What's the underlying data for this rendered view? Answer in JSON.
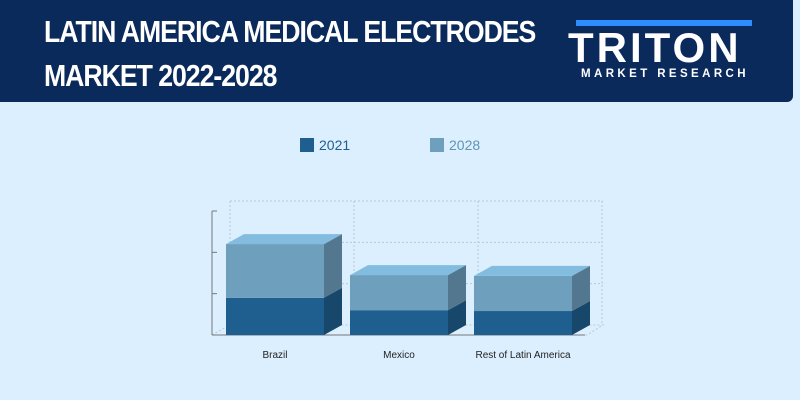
{
  "header": {
    "title_line1": "LATIN AMERICA MEDICAL ELECTRODES",
    "title_line2": "MARKET 2022-2028",
    "logo_text": "TRITON",
    "logo_subtext": "MARKET RESEARCH"
  },
  "colors": {
    "header_bg": "#0b2a5c",
    "page_bg": "#dcefff",
    "series_2021": "#1f5f8f",
    "series_2028": "#6e9fbd",
    "logo_accent": "#2d8cff"
  },
  "chart_data": {
    "type": "bar",
    "stacked": true,
    "three_d": true,
    "categories": [
      "Brazil",
      "Mexico",
      "Rest of Latin America"
    ],
    "series": [
      {
        "name": "2021",
        "values": [
          0.9,
          0.6,
          0.58
        ]
      },
      {
        "name": "2028",
        "values": [
          1.3,
          0.85,
          0.85
        ]
      }
    ],
    "ylim": [
      0,
      3
    ],
    "y_ticks_labeled": false,
    "grid": true,
    "legend_position": "top-center",
    "title": "",
    "xlabel": "",
    "ylabel": ""
  }
}
